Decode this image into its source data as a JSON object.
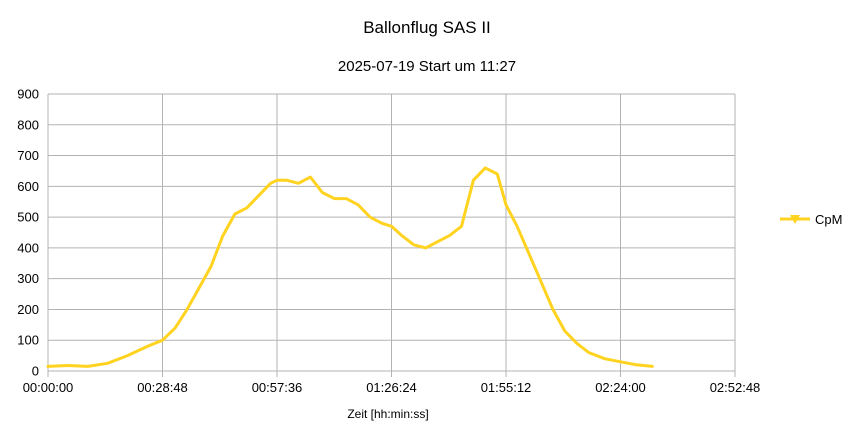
{
  "chart_data": {
    "type": "line",
    "title": "Ballonflug SAS II",
    "subtitle": "2025-07-19 Start um 11:27",
    "xlabel": "Zeit [hh:min:ss]",
    "ylabel": "",
    "xlim": [
      "00:00:00",
      "02:52:48"
    ],
    "ylim": [
      0,
      900
    ],
    "x_tick_labels": [
      "00:00:00",
      "00:28:48",
      "00:57:36",
      "01:26:24",
      "01:55:12",
      "02:24:00",
      "02:52:48"
    ],
    "y_tick_labels": [
      "0",
      "100",
      "200",
      "300",
      "400",
      "500",
      "600",
      "700",
      "800",
      "900"
    ],
    "grid": true,
    "legend_position": "right",
    "series": [
      {
        "name": "CpM",
        "color": "#ffd320",
        "x": [
          "00:00:00",
          "00:05:00",
          "00:10:00",
          "00:15:00",
          "00:20:00",
          "00:25:00",
          "00:28:48",
          "00:32:00",
          "00:35:00",
          "00:38:00",
          "00:41:00",
          "00:44:00",
          "00:47:00",
          "00:50:00",
          "00:53:00",
          "00:56:00",
          "00:57:36",
          "01:00:00",
          "01:03:00",
          "01:06:00",
          "01:09:00",
          "01:12:00",
          "01:15:00",
          "01:18:00",
          "01:21:00",
          "01:24:00",
          "01:26:24",
          "01:29:00",
          "01:32:00",
          "01:35:00",
          "01:38:00",
          "01:41:00",
          "01:44:00",
          "01:47:00",
          "01:50:00",
          "01:53:00",
          "01:55:12",
          "01:58:00",
          "02:01:00",
          "02:04:00",
          "02:07:00",
          "02:10:00",
          "02:13:00",
          "02:16:00",
          "02:20:00",
          "02:24:00",
          "02:28:00",
          "02:32:00"
        ],
        "values": [
          15,
          18,
          15,
          25,
          50,
          80,
          100,
          140,
          200,
          270,
          340,
          440,
          510,
          530,
          570,
          610,
          620,
          620,
          610,
          630,
          580,
          560,
          560,
          540,
          500,
          480,
          470,
          440,
          410,
          400,
          420,
          440,
          470,
          620,
          660,
          640,
          540,
          470,
          380,
          290,
          200,
          130,
          90,
          60,
          40,
          30,
          20,
          15
        ]
      }
    ]
  }
}
